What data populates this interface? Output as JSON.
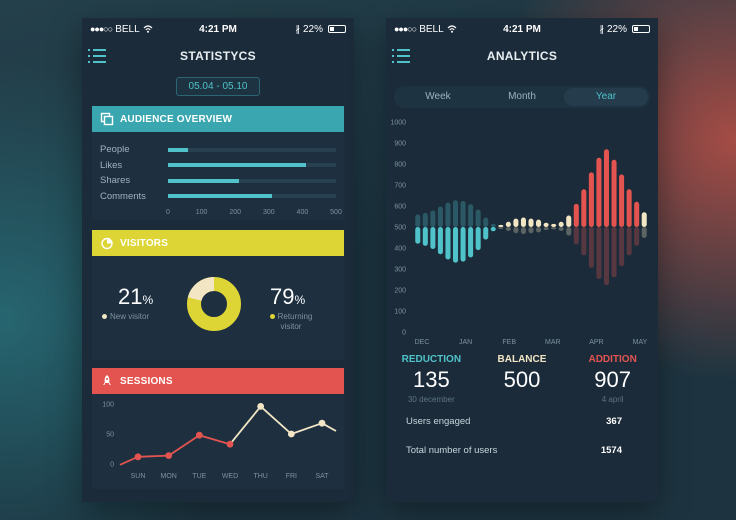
{
  "status": {
    "carrier": "BELL",
    "time": "4:21 PM",
    "battery": "22%"
  },
  "left": {
    "title": "STATISTYCS",
    "date_range": "05.04 - 05.10",
    "audience": {
      "title": "AUDIENCE OVERVIEW",
      "rows": [
        {
          "label": "People",
          "value": 60
        },
        {
          "label": "Likes",
          "value": 410
        },
        {
          "label": "Shares",
          "value": 210
        },
        {
          "label": "Comments",
          "value": 310
        }
      ],
      "axis": [
        "0",
        "100",
        "200",
        "300",
        "400",
        "500"
      ],
      "max": 500
    },
    "visitors": {
      "title": "VISITORS",
      "new_pct": "21",
      "new_label": "New visitor",
      "returning_pct": "79",
      "returning_label_1": "Returning",
      "returning_label_2": "visitor",
      "pct_sign": "%",
      "new_fraction": 0.21
    },
    "sessions": {
      "title": "SESSIONS"
    }
  },
  "right": {
    "title": "ANALYTICS",
    "tabs": [
      "Week",
      "Month",
      "Year"
    ],
    "active_tab": 2,
    "reduction": {
      "label": "REDUCTION",
      "value": "135",
      "sub": "30 december"
    },
    "balance": {
      "label": "BALANCE",
      "value": "500"
    },
    "addition": {
      "label": "ADDITION",
      "value": "907",
      "sub": "4 april"
    },
    "users_engaged": {
      "label": "Users engaged",
      "value": "367"
    },
    "total_users": {
      "label": "Total number of users",
      "value": "1574"
    }
  },
  "colors": {
    "teal": "#4fc3c9",
    "yellow": "#ddd535",
    "red": "#e35450",
    "cream": "#f2e6c4",
    "panel": "#1b2b3a"
  },
  "chart_data": [
    {
      "type": "line",
      "categories": [
        "SUN",
        "MON",
        "TUE",
        "WED",
        "THU",
        "FRI",
        "SAT"
      ],
      "series": [
        {
          "values": [
            12,
            14,
            48,
            33,
            96,
            50,
            68
          ]
        }
      ],
      "ylim": [
        0,
        100
      ],
      "yticks": [
        "0",
        "50",
        "100"
      ],
      "tail_value": 55
    },
    {
      "type": "bar",
      "xlabels": [
        "DEC",
        "JAN",
        "FEB",
        "MAR",
        "APR",
        "MAY"
      ],
      "yticks": [
        "0",
        "100",
        "200",
        "300",
        "400",
        "500",
        "600",
        "700",
        "800",
        "900",
        "1000"
      ],
      "ylim": [
        0,
        1000
      ],
      "baseline": 500,
      "values": [
        420,
        410,
        395,
        370,
        345,
        330,
        335,
        355,
        390,
        440,
        480,
        510,
        525,
        540,
        545,
        540,
        535,
        520,
        515,
        525,
        555,
        610,
        680,
        760,
        830,
        870,
        820,
        750,
        680,
        620,
        570
      ]
    }
  ]
}
